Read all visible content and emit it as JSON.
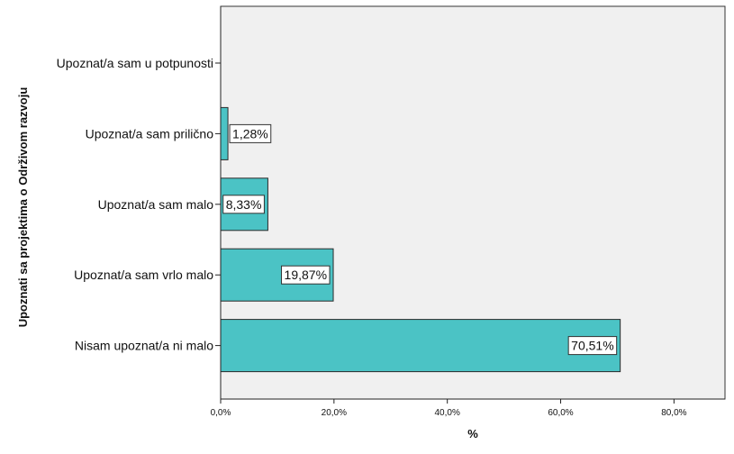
{
  "chart_data": {
    "type": "bar",
    "orientation": "horizontal",
    "title": "",
    "xlabel": "%",
    "ylabel": "Upoznati sa projektima o Održivom razvoju",
    "categories": [
      "Upoznat/a sam u potpunosti",
      "Upoznat/a sam prilično",
      "Upoznat/a sam malo",
      "Upoznat/a sam vrlo malo",
      "Nisam upoznat/a ni malo"
    ],
    "values": [
      0,
      1.28,
      8.33,
      19.87,
      70.51
    ],
    "data_labels": [
      "",
      "1,28%",
      "8,33%",
      "19,87%",
      "70,51%"
    ],
    "xlim": [
      0,
      89
    ],
    "x_ticks": [
      0,
      20,
      40,
      60,
      80
    ],
    "x_tick_labels": [
      "0,0%",
      "20,0%",
      "40,0%",
      "60,0%",
      "80,0%"
    ],
    "grid": false,
    "colors": {
      "bar_fill": "#4bc3c5",
      "bar_stroke": "#2a2a2a",
      "plot_background": "#f0f0f0",
      "label_box_fill": "#ffffff"
    }
  }
}
